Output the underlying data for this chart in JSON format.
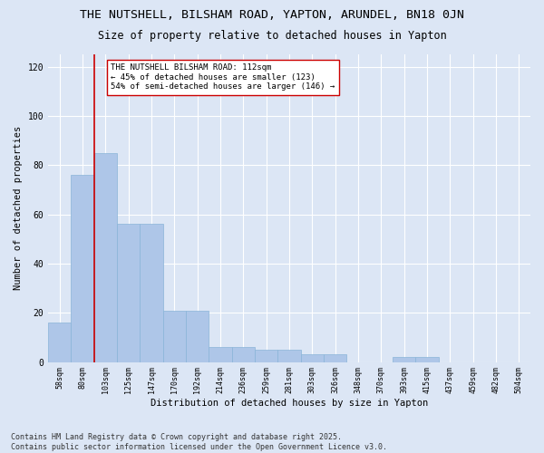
{
  "title1": "THE NUTSHELL, BILSHAM ROAD, YAPTON, ARUNDEL, BN18 0JN",
  "title2": "Size of property relative to detached houses in Yapton",
  "xlabel": "Distribution of detached houses by size in Yapton",
  "ylabel": "Number of detached properties",
  "categories": [
    "58sqm",
    "80sqm",
    "103sqm",
    "125sqm",
    "147sqm",
    "170sqm",
    "192sqm",
    "214sqm",
    "236sqm",
    "259sqm",
    "281sqm",
    "303sqm",
    "326sqm",
    "348sqm",
    "370sqm",
    "393sqm",
    "415sqm",
    "437sqm",
    "459sqm",
    "482sqm",
    "504sqm"
  ],
  "values": [
    16,
    76,
    85,
    56,
    56,
    21,
    21,
    6,
    6,
    5,
    5,
    3,
    3,
    0,
    0,
    2,
    2,
    0,
    0,
    0,
    0
  ],
  "bar_color": "#aec6e8",
  "bar_edge_color": "#8ab4d8",
  "background_color": "#dce6f5",
  "grid_color": "#ffffff",
  "annotation_text": "THE NUTSHELL BILSHAM ROAD: 112sqm\n← 45% of detached houses are smaller (123)\n54% of semi-detached houses are larger (146) →",
  "vline_after_index": 1,
  "vline_color": "#cc0000",
  "annotation_box_facecolor": "#ffffff",
  "annotation_box_edgecolor": "#cc0000",
  "ylim": [
    0,
    125
  ],
  "yticks": [
    0,
    20,
    40,
    60,
    80,
    100,
    120
  ],
  "footer_text": "Contains HM Land Registry data © Crown copyright and database right 2025.\nContains public sector information licensed under the Open Government Licence v3.0.",
  "title1_fontsize": 9.5,
  "title2_fontsize": 8.5,
  "axis_label_fontsize": 7.5,
  "tick_fontsize": 6,
  "annotation_fontsize": 6.5,
  "footer_fontsize": 6
}
